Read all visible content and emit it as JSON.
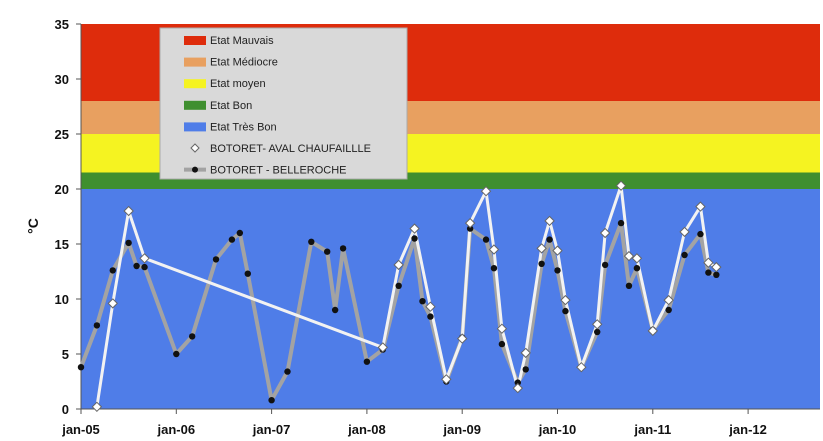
{
  "chart_data": {
    "type": "line",
    "title": "",
    "xlabel": "",
    "ylabel": "°C",
    "ylim": [
      0,
      35
    ],
    "yticks": [
      0,
      5,
      10,
      15,
      20,
      25,
      30,
      35
    ],
    "xlim": [
      "2005-01",
      "2012-10"
    ],
    "xticks": [
      "jan-05",
      "jan-06",
      "jan-07",
      "jan-08",
      "jan-09",
      "jan-10",
      "jan-11",
      "jan-12"
    ],
    "grid": false,
    "legend_position": "top-left",
    "bands": [
      {
        "name": "Etat Très Bon",
        "from": 0,
        "to": 20,
        "color": "#4f7de8"
      },
      {
        "name": "Etat Bon",
        "from": 20,
        "to": 21.5,
        "color": "#3f8f2f"
      },
      {
        "name": "Etat moyen",
        "from": 21.5,
        "to": 25,
        "color": "#f5f321"
      },
      {
        "name": "Etat Médiocre",
        "from": 25,
        "to": 28,
        "color": "#e8a060"
      },
      {
        "name": "Etat Mauvais",
        "from": 28,
        "to": 35,
        "color": "#de2c0c"
      }
    ],
    "legend_order": [
      "Etat Mauvais",
      "Etat Médiocre",
      "Etat moyen",
      "Etat Bon",
      "Etat Très Bon",
      "BOTORET-  AVAL CHAUFAILLLE",
      "BOTORET - BELLEROCHE"
    ],
    "series": [
      {
        "name": "BOTORET-  AVAL CHAUFAILLLE",
        "marker": "diamond-open",
        "color": "#f2f2f2",
        "points": [
          [
            "2005-03",
            0.2
          ],
          [
            "2005-05",
            9.6
          ],
          [
            "2005-07",
            18.0
          ],
          [
            "2005-09",
            13.7
          ],
          [
            "2008-03",
            5.6
          ],
          [
            "2008-05",
            13.1
          ],
          [
            "2008-07",
            16.4
          ],
          [
            "2008-09",
            9.3
          ],
          [
            "2008-11",
            2.7
          ],
          [
            "2009-01",
            6.4
          ],
          [
            "2009-02",
            16.9
          ],
          [
            "2009-04",
            19.8
          ],
          [
            "2009-05",
            14.5
          ],
          [
            "2009-06",
            7.3
          ],
          [
            "2009-08",
            1.9
          ],
          [
            "2009-09",
            5.1
          ],
          [
            "2009-11",
            14.6
          ],
          [
            "2009-12",
            17.1
          ],
          [
            "2010-01",
            14.4
          ],
          [
            "2010-02",
            9.9
          ],
          [
            "2010-04",
            3.8
          ],
          [
            "2010-06",
            7.7
          ],
          [
            "2010-07",
            16.0
          ],
          [
            "2010-09",
            20.3
          ],
          [
            "2010-10",
            13.9
          ],
          [
            "2010-11",
            13.7
          ],
          [
            "2011-01",
            7.1
          ],
          [
            "2011-03",
            9.9
          ],
          [
            "2011-05",
            16.1
          ],
          [
            "2011-07",
            18.4
          ],
          [
            "2011-08",
            13.3
          ],
          [
            "2011-09",
            12.9
          ]
        ]
      },
      {
        "name": "BOTORET - BELLEROCHE",
        "marker": "circle-filled",
        "color": "#a3a3a3",
        "points": [
          [
            "2005-01",
            3.8
          ],
          [
            "2005-03",
            7.6
          ],
          [
            "2005-05",
            12.6
          ],
          [
            "2005-07",
            15.1
          ],
          [
            "2005-08",
            13.0
          ],
          [
            "2005-09",
            12.9
          ],
          [
            "2006-01",
            5.0
          ],
          [
            "2006-03",
            6.6
          ],
          [
            "2006-06",
            13.6
          ],
          [
            "2006-08",
            15.4
          ],
          [
            "2006-09",
            16.0
          ],
          [
            "2006-10",
            12.3
          ],
          [
            "2007-01",
            0.8
          ],
          [
            "2007-03",
            3.4
          ],
          [
            "2007-06",
            15.2
          ],
          [
            "2007-08",
            14.3
          ],
          [
            "2007-09",
            9.0
          ],
          [
            "2007-10",
            14.6
          ],
          [
            "2008-01",
            4.3
          ],
          [
            "2008-03",
            5.4
          ],
          [
            "2008-05",
            11.2
          ],
          [
            "2008-07",
            15.5
          ],
          [
            "2008-08",
            9.8
          ],
          [
            "2008-09",
            8.4
          ],
          [
            "2008-11",
            2.5
          ],
          [
            "2009-01",
            6.5
          ],
          [
            "2009-02",
            16.4
          ],
          [
            "2009-04",
            15.4
          ],
          [
            "2009-05",
            12.8
          ],
          [
            "2009-06",
            5.9
          ],
          [
            "2009-08",
            2.4
          ],
          [
            "2009-09",
            3.6
          ],
          [
            "2009-11",
            13.2
          ],
          [
            "2009-12",
            15.4
          ],
          [
            "2010-01",
            12.6
          ],
          [
            "2010-02",
            8.9
          ],
          [
            "2010-04",
            3.8
          ],
          [
            "2010-06",
            7.0
          ],
          [
            "2010-07",
            13.1
          ],
          [
            "2010-09",
            16.9
          ],
          [
            "2010-10",
            11.2
          ],
          [
            "2010-11",
            12.8
          ],
          [
            "2011-01",
            7.2
          ],
          [
            "2011-03",
            9.0
          ],
          [
            "2011-05",
            14.0
          ],
          [
            "2011-07",
            15.9
          ],
          [
            "2011-08",
            12.4
          ],
          [
            "2011-09",
            12.2
          ]
        ]
      }
    ]
  }
}
